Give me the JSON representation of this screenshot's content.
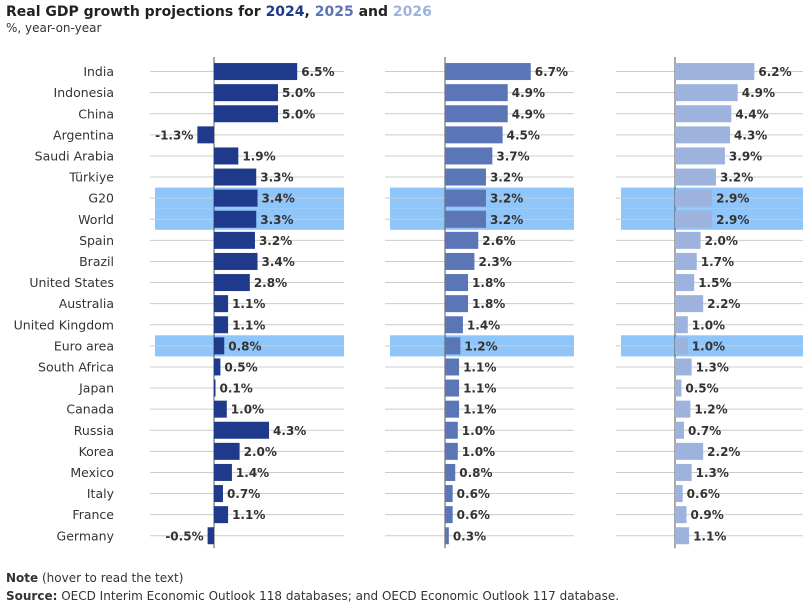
{
  "title": {
    "prefix": "Real GDP growth projections for ",
    "year1": "2024",
    "sep1": ", ",
    "year2": "2025",
    "sep2": " and ",
    "year3": "2026"
  },
  "subtitle": "%, year-on-year",
  "note": {
    "label": "Note",
    "text": " (hover to read the text)"
  },
  "source": {
    "label": "Source:",
    "text": " OECD Interim Economic Outlook 118 databases; and OECD Economic Outlook 117 database."
  },
  "colors": {
    "year2024": "#1f3a8a",
    "year2025": "#5a76b6",
    "year2026": "#9db3dd",
    "highlight": "#8ec5fb",
    "text": "#333333"
  },
  "chart_data": {
    "type": "bar",
    "orientation": "horizontal",
    "categories": [
      "India",
      "Indonesia",
      "China",
      "Argentina",
      "Saudi Arabia",
      "Türkiye",
      "G20",
      "World",
      "Spain",
      "Brazil",
      "United States",
      "Australia",
      "United Kingdom",
      "Euro area",
      "South Africa",
      "Japan",
      "Canada",
      "Russia",
      "Korea",
      "Mexico",
      "Italy",
      "France",
      "Germany"
    ],
    "highlighted": [
      "G20",
      "World",
      "Euro area"
    ],
    "series": [
      {
        "name": "2024",
        "values": [
          6.5,
          5.0,
          5.0,
          -1.3,
          1.9,
          3.3,
          3.4,
          3.3,
          3.2,
          3.4,
          2.8,
          1.1,
          1.1,
          0.8,
          0.5,
          0.1,
          1.0,
          4.3,
          2.0,
          1.4,
          0.7,
          1.1,
          -0.5
        ],
        "labels": [
          "6.5%",
          "5.0%",
          "5.0%",
          "-1.3%",
          "1.9%",
          "3.3%",
          "3.4%",
          "3.3%",
          "3.2%",
          "3.4%",
          "2.8%",
          "1.1%",
          "1.1%",
          "0.8%",
          "0.5%",
          "0.1%",
          "1.0%",
          "4.3%",
          "2.0%",
          "1.4%",
          "0.7%",
          "1.1%",
          "-0.5%"
        ]
      },
      {
        "name": "2025",
        "values": [
          6.7,
          4.9,
          4.9,
          4.5,
          3.7,
          3.2,
          3.2,
          3.2,
          2.6,
          2.3,
          1.8,
          1.8,
          1.4,
          1.2,
          1.1,
          1.1,
          1.1,
          1.0,
          1.0,
          0.8,
          0.6,
          0.6,
          0.3
        ],
        "labels": [
          "6.7%",
          "4.9%",
          "4.9%",
          "4.5%",
          "3.7%",
          "3.2%",
          "3.2%",
          "3.2%",
          "2.6%",
          "2.3%",
          "1.8%",
          "1.8%",
          "1.4%",
          "1.2%",
          "1.1%",
          "1.1%",
          "1.1%",
          "1.0%",
          "1.0%",
          "0.8%",
          "0.6%",
          "0.6%",
          "0.3%"
        ]
      },
      {
        "name": "2026",
        "values": [
          6.2,
          4.9,
          4.4,
          4.3,
          3.9,
          3.2,
          2.9,
          2.9,
          2.0,
          1.7,
          1.5,
          2.2,
          1.0,
          1.0,
          1.3,
          0.5,
          1.2,
          0.7,
          2.2,
          1.3,
          0.6,
          0.9,
          1.1
        ],
        "labels": [
          "6.2%",
          "4.9%",
          "4.4%",
          "4.3%",
          "3.9%",
          "3.2%",
          "2.9%",
          "2.9%",
          "2.0%",
          "1.7%",
          "1.5%",
          "2.2%",
          "1.0%",
          "1.0%",
          "1.3%",
          "0.5%",
          "1.2%",
          "0.7%",
          "2.2%",
          "1.3%",
          "0.6%",
          "0.9%",
          "1.1%"
        ]
      }
    ]
  }
}
